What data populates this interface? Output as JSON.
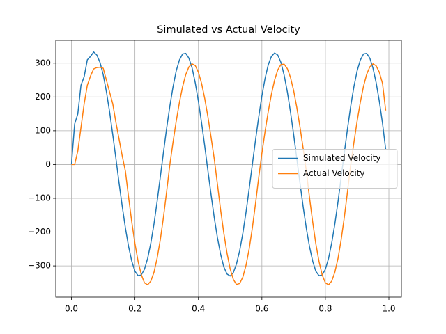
{
  "chart_data": {
    "type": "line",
    "title": "Simulated vs Actual Velocity",
    "x": [
      0,
      0.01,
      0.02,
      0.03,
      0.04,
      0.05,
      0.06,
      0.07,
      0.08,
      0.09,
      0.1,
      0.11,
      0.12,
      0.13,
      0.14,
      0.15,
      0.16,
      0.17,
      0.18,
      0.19,
      0.2,
      0.21,
      0.22,
      0.23,
      0.24,
      0.25,
      0.26,
      0.27,
      0.28,
      0.29,
      0.3,
      0.31,
      0.32,
      0.33,
      0.34,
      0.35,
      0.36,
      0.37,
      0.38,
      0.39,
      0.4,
      0.41,
      0.42,
      0.43,
      0.44,
      0.45,
      0.46,
      0.47,
      0.48,
      0.49,
      0.5,
      0.51,
      0.52,
      0.53,
      0.54,
      0.55,
      0.56,
      0.57,
      0.58,
      0.59,
      0.6,
      0.61,
      0.62,
      0.63,
      0.64,
      0.65,
      0.66,
      0.67,
      0.68,
      0.69,
      0.7,
      0.71,
      0.72,
      0.73,
      0.74,
      0.75,
      0.76,
      0.77,
      0.78,
      0.79,
      0.8,
      0.81,
      0.82,
      0.83,
      0.84,
      0.85,
      0.86,
      0.87,
      0.88,
      0.89,
      0.9,
      0.91,
      0.92,
      0.93,
      0.94,
      0.95,
      0.96,
      0.97,
      0.98,
      0.99
    ],
    "series": [
      {
        "name": "Simulated Velocity",
        "color": "#1f77b4",
        "values": [
          0,
          120,
          150,
          235,
          260,
          310,
          320,
          333,
          324,
          302,
          266,
          216,
          157,
          89,
          18,
          -55,
          -124,
          -188,
          -243,
          -286,
          -316,
          -329,
          -327,
          -310,
          -278,
          -233,
          -176,
          -109,
          -36,
          37,
          108,
          173,
          230,
          277,
          309,
          327,
          329,
          315,
          286,
          242,
          187,
          123,
          54,
          -19,
          -90,
          -158,
          -217,
          -266,
          -303,
          -324,
          -330,
          -320,
          -294,
          -255,
          -203,
          -141,
          -71,
          1,
          73,
          141,
          203,
          255,
          295,
          320,
          330,
          324,
          302,
          265,
          216,
          156,
          89,
          17,
          -55,
          -125,
          -189,
          -243,
          -286,
          -316,
          -329,
          -327,
          -310,
          -278,
          -232,
          -175,
          -109,
          -35,
          37,
          108,
          174,
          231,
          277,
          309,
          327,
          329,
          315,
          285,
          242,
          187,
          122,
          45
        ]
      },
      {
        "name": "Actual Velocity",
        "color": "#ff7f0e",
        "values": [
          0,
          0,
          40,
          110,
          180,
          235,
          262,
          283,
          287,
          288,
          285,
          250,
          215,
          180,
          125,
          75,
          25,
          -20,
          -97,
          -170,
          -234,
          -287,
          -326,
          -350,
          -356,
          -345,
          -319,
          -277,
          -222,
          -155,
          -79,
          0,
          66,
          128,
          183,
          230,
          266,
          289,
          298,
          293,
          273,
          240,
          195,
          141,
          80,
          16,
          -59,
          -135,
          -203,
          -262,
          -309,
          -340,
          -355,
          -352,
          -333,
          -298,
          -249,
          -187,
          -115,
          -38,
          33,
          98,
          157,
          208,
          250,
          280,
          296,
          297,
          284,
          258,
          219,
          169,
          111,
          48,
          -20,
          -98,
          -170,
          -235,
          -287,
          -327,
          -350,
          -356,
          -345,
          -318,
          -277,
          -221,
          -154,
          -78,
          1,
          66,
          128,
          184,
          231,
          267,
          289,
          298,
          292,
          273,
          240,
          160
        ]
      }
    ],
    "xlim": [
      -0.0495,
      1.0395
    ],
    "ylim": [
      -392.5,
      367.5
    ],
    "xticks": [
      {
        "value": 0,
        "label": "0.0"
      },
      0.2,
      0.4,
      0.6,
      0.8,
      {
        "value": 1,
        "label": "1.0"
      }
    ],
    "yticks": [
      {
        "value": -300,
        "label": "−300"
      },
      {
        "value": -200,
        "label": "−200"
      },
      {
        "value": -100,
        "label": "−100"
      },
      0,
      100,
      200,
      300
    ],
    "grid": true,
    "legend": "right"
  }
}
